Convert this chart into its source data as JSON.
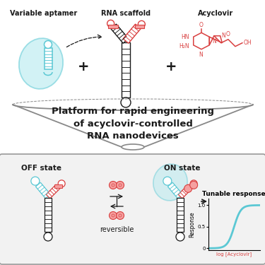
{
  "title": "Platform for rapid engineering\nof acyclovir-controlled\nRNA nanodevices",
  "top_labels": [
    "Variable aptamer",
    "RNA scaffold",
    "Acyclovir"
  ],
  "bottom_labels": [
    "OFF state",
    "ON state",
    "Tunable response"
  ],
  "reversible_text": "reversible",
  "x_label": "log [Acyclovir]",
  "y_label": "Response",
  "y_ticks": [
    "0",
    "0.5",
    "1.0"
  ],
  "cyan_color": "#5BC8D4",
  "cyan_fill": "#ADE8EE",
  "red_color": "#D94040",
  "red_fill": "#F5A0A0",
  "dark_color": "#1A1A1A",
  "gray_color": "#888888",
  "bg_white": "#FFFFFF",
  "bg_box": "#F5F5F5",
  "figsize": [
    3.75,
    3.75
  ],
  "dpi": 100
}
